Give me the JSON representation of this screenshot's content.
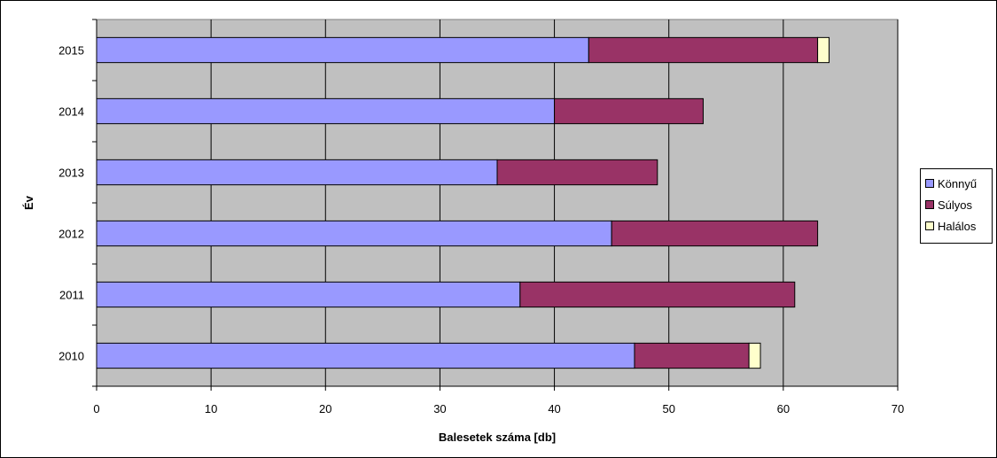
{
  "chart_data": {
    "type": "bar",
    "orientation": "horizontal",
    "stacked": true,
    "categories": [
      "2010",
      "2011",
      "2012",
      "2013",
      "2014",
      "2015"
    ],
    "series": [
      {
        "name": "Könnyű",
        "color": "#9999FF",
        "values": [
          47,
          37,
          45,
          35,
          40,
          43
        ]
      },
      {
        "name": "Súlyos",
        "color": "#993366",
        "values": [
          10,
          24,
          18,
          14,
          13,
          20
        ]
      },
      {
        "name": "Halálos",
        "color": "#FFFFCC",
        "values": [
          1,
          0,
          0,
          0,
          0,
          1
        ]
      }
    ],
    "xlabel": "Balesetek száma [db]",
    "ylabel": "Év",
    "xlim": [
      0,
      70
    ],
    "xticks": [
      0,
      10,
      20,
      30,
      40,
      50,
      60,
      70
    ],
    "grid": true,
    "plot_background": "#C0C0C0",
    "legend_position": "right"
  }
}
